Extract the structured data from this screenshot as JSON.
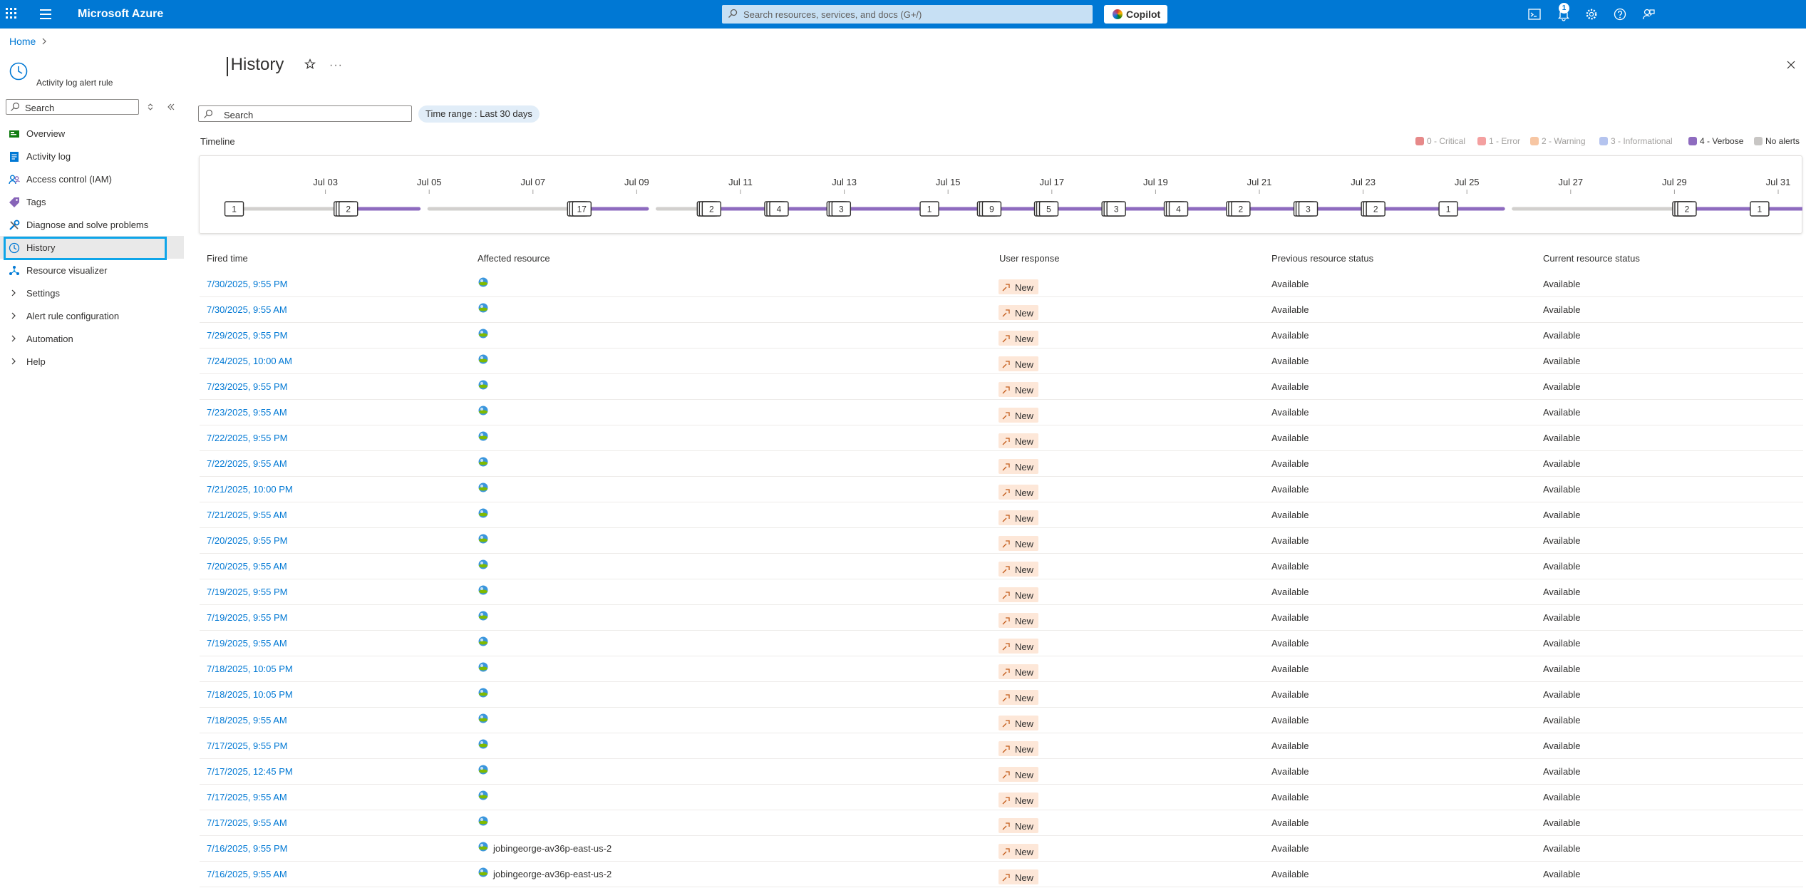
{
  "topbar": {
    "brand": "Microsoft Azure",
    "search_placeholder": "Search resources, services, and docs (G+/)",
    "copilot_label": "Copilot",
    "notifications_count": "1",
    "icons": [
      "cloud-shell-icon",
      "bell-icon",
      "gear-icon",
      "help-icon",
      "feedback-icon"
    ]
  },
  "breadcrumb": {
    "home": "Home"
  },
  "sidebar": {
    "subtitle": "Activity log alert rule",
    "search_placeholder": "Search",
    "items": [
      {
        "label": "Overview",
        "icon": "overview-icon",
        "color": "#107c10"
      },
      {
        "label": "Activity log",
        "icon": "activity-log-icon",
        "color": "#0078d4"
      },
      {
        "label": "Access control (IAM)",
        "icon": "iam-icon",
        "color": "#0078d4"
      },
      {
        "label": "Tags",
        "icon": "tag-icon",
        "color": "#8764b8"
      },
      {
        "label": "Diagnose and solve problems",
        "icon": "wrench-icon",
        "color": "#0078d4"
      },
      {
        "label": "History",
        "icon": "clock-icon",
        "color": "#0078d4",
        "selected": true
      },
      {
        "label": "Resource visualizer",
        "icon": "visualizer-icon",
        "color": "#0078d4"
      }
    ],
    "groups": [
      {
        "label": "Settings"
      },
      {
        "label": "Alert rule configuration"
      },
      {
        "label": "Automation"
      },
      {
        "label": "Help"
      }
    ]
  },
  "page": {
    "title": "History",
    "more": "···",
    "search_placeholder": "Search",
    "time_range_label": "Time range : ",
    "time_range_value": "Last 30 days"
  },
  "timeline": {
    "label": "Timeline",
    "legend": [
      {
        "label": "0 - Critical",
        "color": "#e06b6b",
        "dim": true
      },
      {
        "label": "1 - Error",
        "color": "#f4a0a0",
        "dim": true
      },
      {
        "label": "2 - Warning",
        "color": "#f7c6a3",
        "dim": true
      },
      {
        "label": "3 - Informational",
        "color": "#b5c4ef",
        "dim": true
      },
      {
        "label": "4 - Verbose",
        "color": "#8e6bbf",
        "dim": false
      },
      {
        "label": "No alerts",
        "color": "#c8c6c4",
        "dim": false
      }
    ],
    "date_labels": [
      "Jul 03",
      "Jul 05",
      "Jul 07",
      "Jul 09",
      "Jul 11",
      "Jul 13",
      "Jul 15",
      "Jul 17",
      "Jul 19",
      "Jul 21",
      "Jul 23",
      "Jul 25",
      "Jul 27",
      "Jul 29",
      "Jul 31"
    ],
    "start_date": "Jul 01",
    "days_shown": 31,
    "events": [
      {
        "day": 1.2,
        "count": "1",
        "stacked": false
      },
      {
        "day": 3.4,
        "count": "2",
        "stacked": true
      },
      {
        "day": 7.9,
        "count": "17",
        "stacked": true
      },
      {
        "day": 10.4,
        "count": "2",
        "stacked": true
      },
      {
        "day": 11.7,
        "count": "4",
        "stacked": true
      },
      {
        "day": 12.9,
        "count": "3",
        "stacked": true
      },
      {
        "day": 14.6,
        "count": "1",
        "stacked": false
      },
      {
        "day": 15.8,
        "count": "9",
        "stacked": true
      },
      {
        "day": 16.9,
        "count": "5",
        "stacked": true
      },
      {
        "day": 18.2,
        "count": "3",
        "stacked": true
      },
      {
        "day": 19.4,
        "count": "4",
        "stacked": true
      },
      {
        "day": 20.6,
        "count": "2",
        "stacked": true
      },
      {
        "day": 21.9,
        "count": "3",
        "stacked": true
      },
      {
        "day": 23.2,
        "count": "2",
        "stacked": true
      },
      {
        "day": 24.6,
        "count": "1",
        "stacked": false
      },
      {
        "day": 29.2,
        "count": "2",
        "stacked": true
      },
      {
        "day": 30.6,
        "count": "1",
        "stacked": false
      }
    ],
    "segments": [
      {
        "from": 1.2,
        "to": 3.4,
        "type": "none"
      },
      {
        "from": 3.4,
        "to": 4.8,
        "type": "verbose"
      },
      {
        "from": 5.0,
        "to": 7.8,
        "type": "none"
      },
      {
        "from": 7.9,
        "to": 9.2,
        "type": "verbose"
      },
      {
        "from": 9.4,
        "to": 10.4,
        "type": "none"
      },
      {
        "from": 10.4,
        "to": 25.7,
        "type": "verbose"
      },
      {
        "from": 25.9,
        "to": 29.1,
        "type": "none"
      },
      {
        "from": 29.2,
        "to": 32.0,
        "type": "verbose"
      }
    ]
  },
  "table": {
    "headers": [
      "Fired time",
      "Affected resource",
      "User response",
      "Previous resource status",
      "Current resource status"
    ],
    "rows": [
      {
        "time": "7/30/2025, 9:55 PM",
        "resource": "",
        "response": "New",
        "prev": "Available",
        "curr": "Available"
      },
      {
        "time": "7/30/2025, 9:55 AM",
        "resource": "",
        "response": "New",
        "prev": "Available",
        "curr": "Available"
      },
      {
        "time": "7/29/2025, 9:55 PM",
        "resource": "",
        "response": "New",
        "prev": "Available",
        "curr": "Available"
      },
      {
        "time": "7/24/2025, 10:00 AM",
        "resource": "",
        "response": "New",
        "prev": "Available",
        "curr": "Available"
      },
      {
        "time": "7/23/2025, 9:55 PM",
        "resource": "",
        "response": "New",
        "prev": "Available",
        "curr": "Available"
      },
      {
        "time": "7/23/2025, 9:55 AM",
        "resource": "",
        "response": "New",
        "prev": "Available",
        "curr": "Available"
      },
      {
        "time": "7/22/2025, 9:55 PM",
        "resource": "",
        "response": "New",
        "prev": "Available",
        "curr": "Available"
      },
      {
        "time": "7/22/2025, 9:55 AM",
        "resource": "",
        "response": "New",
        "prev": "Available",
        "curr": "Available"
      },
      {
        "time": "7/21/2025, 10:00 PM",
        "resource": "",
        "response": "New",
        "prev": "Available",
        "curr": "Available"
      },
      {
        "time": "7/21/2025, 9:55 AM",
        "resource": "",
        "response": "New",
        "prev": "Available",
        "curr": "Available"
      },
      {
        "time": "7/20/2025, 9:55 PM",
        "resource": "",
        "response": "New",
        "prev": "Available",
        "curr": "Available"
      },
      {
        "time": "7/20/2025, 9:55 AM",
        "resource": "",
        "response": "New",
        "prev": "Available",
        "curr": "Available"
      },
      {
        "time": "7/19/2025, 9:55 PM",
        "resource": "",
        "response": "New",
        "prev": "Available",
        "curr": "Available"
      },
      {
        "time": "7/19/2025, 9:55 PM",
        "resource": "",
        "response": "New",
        "prev": "Available",
        "curr": "Available"
      },
      {
        "time": "7/19/2025, 9:55 AM",
        "resource": "",
        "response": "New",
        "prev": "Available",
        "curr": "Available"
      },
      {
        "time": "7/18/2025, 10:05 PM",
        "resource": "",
        "response": "New",
        "prev": "Available",
        "curr": "Available"
      },
      {
        "time": "7/18/2025, 10:05 PM",
        "resource": "",
        "response": "New",
        "prev": "Available",
        "curr": "Available"
      },
      {
        "time": "7/18/2025, 9:55 AM",
        "resource": "",
        "response": "New",
        "prev": "Available",
        "curr": "Available"
      },
      {
        "time": "7/17/2025, 9:55 PM",
        "resource": "",
        "response": "New",
        "prev": "Available",
        "curr": "Available"
      },
      {
        "time": "7/17/2025, 12:45 PM",
        "resource": "",
        "response": "New",
        "prev": "Available",
        "curr": "Available"
      },
      {
        "time": "7/17/2025, 9:55 AM",
        "resource": "",
        "response": "New",
        "prev": "Available",
        "curr": "Available"
      },
      {
        "time": "7/17/2025, 9:55 AM",
        "resource": "",
        "response": "New",
        "prev": "Available",
        "curr": "Available"
      },
      {
        "time": "7/16/2025, 9:55 PM",
        "resource": "jobingeorge-av36p-east-us-2",
        "response": "New",
        "prev": "Available",
        "curr": "Available"
      },
      {
        "time": "7/16/2025, 9:55 AM",
        "resource": "jobingeorge-av36p-east-us-2",
        "response": "New",
        "prev": "Available",
        "curr": "Available"
      }
    ]
  }
}
